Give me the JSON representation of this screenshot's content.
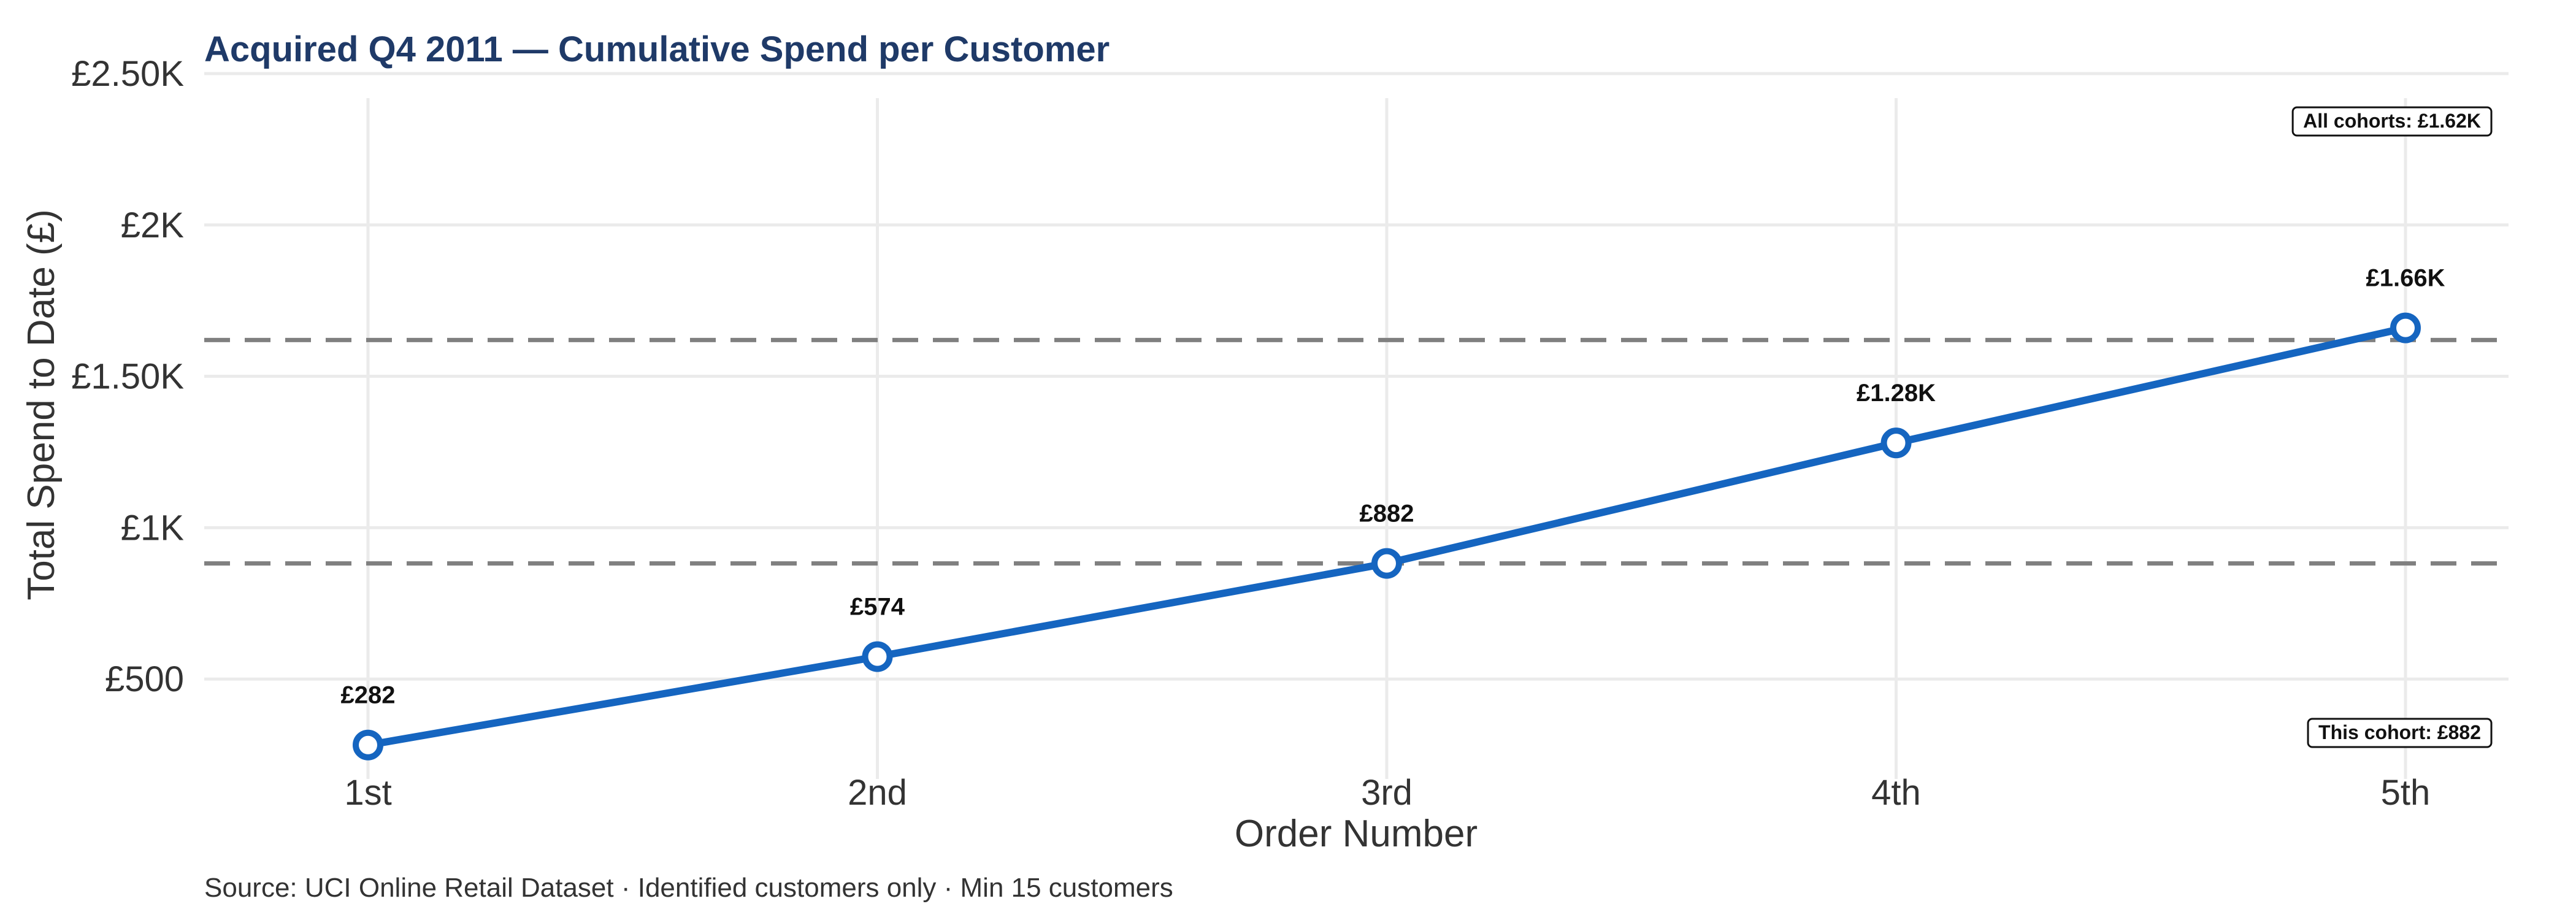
{
  "chart_data": {
    "type": "line",
    "title": "Acquired Q4 2011 — Cumulative Spend per Customer",
    "xlabel": "Order Number",
    "ylabel": "Total Spend to Date (£)",
    "categories": [
      "1st",
      "2nd",
      "3rd",
      "4th",
      "5th"
    ],
    "series": [
      {
        "values": [
          282,
          574,
          882,
          1280,
          1660
        ],
        "labels": [
          "£282",
          "£574",
          "£882",
          "£1.28K",
          "£1.66K"
        ],
        "color": "#1565c0"
      }
    ],
    "ylim": [
      170,
      2500
    ],
    "yticks": [
      500,
      1000,
      1500,
      2000,
      2500
    ],
    "ytick_labels": [
      "£500",
      "£1K",
      "£1.50K",
      "£2K",
      "£2.50K"
    ],
    "reference_lines": [
      {
        "value": 1620,
        "label": "All cohorts: £1.62K",
        "position": "top-right"
      },
      {
        "value": 882,
        "label": "This cohort: £882",
        "position": "bottom-right"
      }
    ],
    "grid": true,
    "caption": "Source: UCI Online Retail Dataset · Identified customers only · Min 15 customers",
    "colors": {
      "line": "#1565c0",
      "title": "#1f3a68",
      "reference": "#808080",
      "grid": "#ebebeb"
    }
  }
}
